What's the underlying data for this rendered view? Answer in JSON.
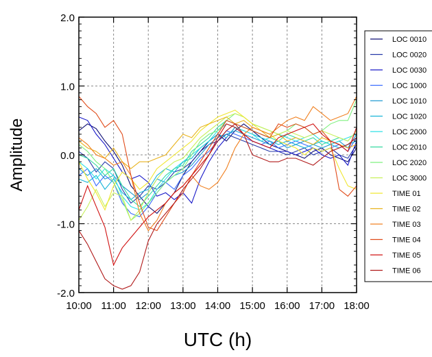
{
  "chart_data": {
    "type": "line",
    "title": "",
    "xlabel": "UTC (h)",
    "ylabel": "Amplitude",
    "xlim": [
      10,
      18
    ],
    "ylim": [
      -2,
      2
    ],
    "x_tick_labels": [
      "10:00",
      "11:00",
      "12:00",
      "13:00",
      "14:00",
      "15:00",
      "16:00",
      "17:00",
      "18:00"
    ],
    "y_tick_labels": [
      "2.0",
      "1.0",
      "0.0",
      "-1.0",
      "-2.0"
    ],
    "y_ticks": [
      2,
      1,
      0,
      -1,
      -2
    ],
    "grid": true,
    "legend_position": "right",
    "x": [
      10.0,
      10.25,
      10.5,
      10.75,
      11.0,
      11.25,
      11.5,
      11.75,
      12.0,
      12.25,
      12.5,
      12.75,
      13.0,
      13.25,
      13.5,
      13.75,
      14.0,
      14.25,
      14.5,
      14.75,
      15.0,
      15.25,
      15.5,
      15.75,
      16.0,
      16.25,
      16.5,
      16.75,
      17.0,
      17.25,
      17.5,
      17.75,
      18.0
    ],
    "series": [
      {
        "name": "LOC 0010",
        "color": "#0d0d73",
        "values": [
          0.35,
          0.45,
          0.38,
          0.2,
          0.05,
          -0.15,
          -0.45,
          -0.6,
          -0.75,
          -0.85,
          -0.7,
          -0.55,
          -0.3,
          -0.1,
          0.05,
          0.2,
          0.3,
          0.2,
          0.35,
          0.45,
          0.35,
          0.25,
          0.15,
          0.1,
          0.05,
          0.0,
          -0.05,
          0.05,
          0.1,
          0.0,
          -0.05,
          -0.1,
          0.1
        ]
      },
      {
        "name": "LOC 0020",
        "color": "#2438a8",
        "values": [
          0.05,
          -0.05,
          -0.25,
          -0.1,
          -0.2,
          -0.5,
          -0.7,
          -0.6,
          -0.45,
          -0.5,
          -0.4,
          -0.25,
          -0.2,
          -0.1,
          0.05,
          0.15,
          0.2,
          0.3,
          0.25,
          0.2,
          0.15,
          0.1,
          0.05,
          0.05,
          0.0,
          0.05,
          0.1,
          0.0,
          0.05,
          0.1,
          0.0,
          -0.05,
          0.15
        ]
      },
      {
        "name": "LOC 0030",
        "color": "#1717c8",
        "values": [
          0.55,
          0.5,
          0.3,
          0.15,
          -0.05,
          -0.25,
          -0.35,
          -0.3,
          -0.4,
          -0.6,
          -0.55,
          -0.65,
          -0.55,
          -0.7,
          -0.35,
          -0.1,
          0.1,
          0.25,
          0.4,
          0.3,
          0.2,
          0.15,
          0.1,
          0.05,
          0.05,
          0.0,
          0.05,
          0.1,
          0.0,
          -0.05,
          0.0,
          -0.15,
          0.2
        ]
      },
      {
        "name": "LOC 1000",
        "color": "#3a6cff",
        "values": [
          -0.3,
          -0.2,
          -0.45,
          -0.3,
          -0.4,
          -0.7,
          -0.85,
          -0.9,
          -0.75,
          -0.55,
          -0.4,
          -0.5,
          -0.3,
          -0.2,
          -0.05,
          0.05,
          0.2,
          0.35,
          0.3,
          0.25,
          0.2,
          0.15,
          0.2,
          0.1,
          0.15,
          0.2,
          0.15,
          0.1,
          0.05,
          0.1,
          0.15,
          0.05,
          0.25
        ]
      },
      {
        "name": "LOC 1010",
        "color": "#1e9bd0",
        "values": [
          -0.2,
          -0.3,
          -0.2,
          -0.35,
          -0.3,
          -0.45,
          -0.55,
          -0.65,
          -0.55,
          -0.35,
          -0.4,
          -0.3,
          -0.25,
          -0.15,
          0.0,
          0.15,
          0.25,
          0.3,
          0.35,
          0.3,
          0.25,
          0.2,
          0.15,
          0.2,
          0.1,
          0.15,
          0.2,
          0.15,
          0.1,
          0.15,
          0.2,
          0.1,
          0.3
        ]
      },
      {
        "name": "LOC 1020",
        "color": "#16b3d8",
        "values": [
          -0.35,
          -0.4,
          -0.3,
          -0.5,
          -0.35,
          -0.55,
          -0.65,
          -0.55,
          -0.5,
          -0.3,
          -0.2,
          -0.25,
          -0.1,
          -0.05,
          0.1,
          0.2,
          0.3,
          0.25,
          0.4,
          0.35,
          0.3,
          0.25,
          0.2,
          0.15,
          0.2,
          0.15,
          0.1,
          0.15,
          0.2,
          0.15,
          0.1,
          0.15,
          0.2
        ]
      },
      {
        "name": "LOC 2000",
        "color": "#2ee0e6",
        "values": [
          -0.1,
          -0.2,
          -0.35,
          -0.2,
          -0.3,
          -0.6,
          -0.75,
          -0.8,
          -0.7,
          -0.5,
          -0.35,
          -0.2,
          -0.1,
          0.0,
          0.1,
          0.2,
          0.35,
          0.45,
          0.4,
          0.35,
          0.3,
          0.2,
          0.25,
          0.3,
          0.25,
          0.2,
          0.25,
          0.3,
          0.2,
          0.15,
          0.2,
          0.25,
          0.3
        ]
      },
      {
        "name": "LOC 2010",
        "color": "#33d9a0",
        "values": [
          0.0,
          -0.05,
          -0.15,
          -0.3,
          -0.2,
          -0.45,
          -0.65,
          -0.75,
          -0.6,
          -0.45,
          -0.3,
          -0.2,
          -0.15,
          0.05,
          0.15,
          0.25,
          0.4,
          0.5,
          0.45,
          0.4,
          0.35,
          0.3,
          0.25,
          0.2,
          0.3,
          0.25,
          0.2,
          0.25,
          0.15,
          0.2,
          0.25,
          0.2,
          0.35
        ]
      },
      {
        "name": "LOC 2020",
        "color": "#7ef07e",
        "values": [
          0.15,
          0.05,
          -0.1,
          -0.2,
          -0.4,
          -0.65,
          -0.95,
          -0.85,
          -0.7,
          -0.55,
          -0.4,
          -0.3,
          -0.2,
          0.0,
          0.2,
          0.3,
          0.35,
          0.5,
          0.6,
          0.55,
          0.45,
          0.4,
          0.35,
          0.3,
          0.35,
          0.45,
          0.4,
          0.3,
          0.35,
          0.45,
          0.5,
          0.5,
          0.8
        ]
      },
      {
        "name": "LOC 3000",
        "color": "#c8f05a",
        "values": [
          -0.95,
          -0.75,
          -0.5,
          -0.75,
          -0.55,
          -0.6,
          -0.95,
          -0.8,
          -0.55,
          -0.35,
          -0.2,
          -0.1,
          -0.05,
          0.1,
          0.25,
          0.35,
          0.45,
          0.55,
          0.6,
          0.55,
          0.45,
          0.4,
          0.35,
          0.3,
          0.35,
          0.3,
          0.25,
          0.3,
          0.35,
          0.3,
          0.25,
          0.2,
          0.35
        ]
      },
      {
        "name": "TIME 01",
        "color": "#f0e630",
        "values": [
          -0.1,
          -0.35,
          -0.55,
          -0.8,
          -0.45,
          -0.25,
          -0.35,
          -0.5,
          -0.4,
          -0.2,
          -0.1,
          0.0,
          0.1,
          0.2,
          0.35,
          0.45,
          0.55,
          0.6,
          0.65,
          0.55,
          0.45,
          0.35,
          0.3,
          0.2,
          0.15,
          0.1,
          0.0,
          0.1,
          0.05,
          0.1,
          -0.2,
          -0.45,
          -0.5
        ]
      },
      {
        "name": "TIME 02",
        "color": "#e8b21c",
        "values": [
          0.2,
          0.1,
          0.05,
          -0.05,
          0.1,
          -0.1,
          -0.2,
          -0.1,
          -0.1,
          -0.05,
          0.0,
          0.15,
          0.3,
          0.25,
          0.4,
          0.45,
          0.5,
          0.55,
          0.45,
          0.5,
          0.4,
          0.35,
          0.25,
          0.3,
          0.2,
          0.25,
          0.2,
          0.15,
          0.25,
          0.2,
          0.15,
          0.1,
          0.15
        ]
      },
      {
        "name": "TIME 03",
        "color": "#f08020",
        "values": [
          0.25,
          0.15,
          0.0,
          -0.05,
          -0.15,
          -0.1,
          -0.3,
          -0.85,
          -1.1,
          -0.95,
          -0.7,
          -0.55,
          -0.45,
          -0.3,
          -0.45,
          -0.5,
          -0.4,
          -0.2,
          0.1,
          0.3,
          0.4,
          0.35,
          0.3,
          0.4,
          0.5,
          0.55,
          0.5,
          0.7,
          0.6,
          0.5,
          0.55,
          0.6,
          0.85
        ]
      },
      {
        "name": "TIME 04",
        "color": "#e04a18",
        "values": [
          0.85,
          0.7,
          0.6,
          0.4,
          0.5,
          0.3,
          -0.3,
          -0.7,
          -1.05,
          -1.1,
          -0.9,
          -0.7,
          -0.55,
          -0.3,
          -0.1,
          0.1,
          0.3,
          0.5,
          0.45,
          0.4,
          0.35,
          0.3,
          0.25,
          0.45,
          0.4,
          0.45,
          0.4,
          0.3,
          0.35,
          0.2,
          -0.5,
          -0.6,
          -0.45
        ]
      },
      {
        "name": "TIME 05",
        "color": "#d01010",
        "values": [
          -0.8,
          -0.45,
          -0.75,
          -1.05,
          -1.6,
          -1.35,
          -1.2,
          -1.05,
          -0.9,
          -0.8,
          -0.7,
          -0.55,
          -0.45,
          -0.3,
          -0.15,
          0.0,
          0.25,
          0.45,
          0.4,
          0.3,
          0.2,
          0.15,
          0.1,
          0.25,
          0.3,
          0.35,
          0.4,
          0.45,
          0.3,
          0.2,
          0.15,
          0.05,
          0.4
        ]
      },
      {
        "name": "TIME 06",
        "color": "#b01818",
        "values": [
          -1.1,
          -1.3,
          -1.55,
          -1.8,
          -1.9,
          -1.95,
          -1.9,
          -1.7,
          -1.25,
          -1.0,
          -0.85,
          -0.7,
          -0.5,
          -0.35,
          -0.2,
          0.0,
          0.2,
          0.35,
          0.45,
          0.3,
          0.0,
          -0.05,
          -0.1,
          -0.1,
          -0.05,
          -0.05,
          -0.1,
          -0.15,
          -0.05,
          0.05,
          0.1,
          0.15,
          0.25
        ]
      }
    ]
  }
}
